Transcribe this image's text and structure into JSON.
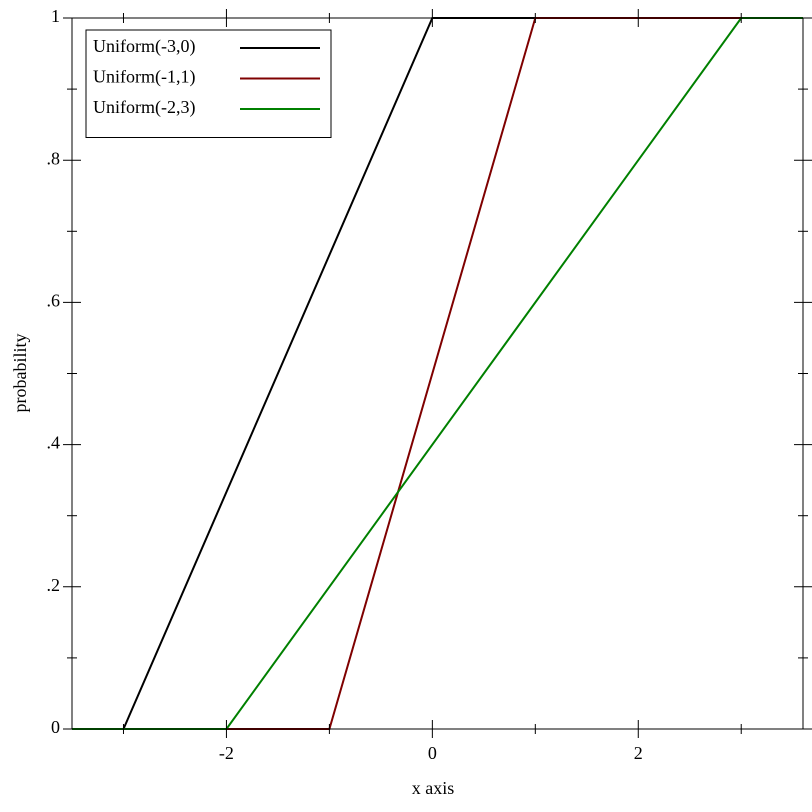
{
  "chart_data": {
    "type": "line",
    "x_label": "x axis",
    "y_label": "probability",
    "xlim": [
      -3.5,
      3.6
    ],
    "ylim": [
      0,
      1
    ],
    "xticks": [
      -2,
      0,
      2
    ],
    "xminorticks": [
      -3,
      -1,
      1,
      3
    ],
    "yticks": [
      0,
      {
        "value": 0.2,
        "label": ".2"
      },
      {
        "value": 0.4,
        "label": ".4"
      },
      {
        "value": 0.6,
        "label": ".6"
      },
      {
        "value": 0.8,
        "label": ".8"
      },
      1
    ],
    "yminorticks": [
      0.1,
      0.3,
      0.5,
      0.7,
      0.9
    ],
    "legend": "top-left",
    "series": [
      {
        "name": "Uniform(-3,0)",
        "color": "#000000",
        "x": [
          -3.5,
          -3,
          0,
          3.6
        ],
        "values": [
          0,
          0,
          1,
          1
        ]
      },
      {
        "name": "Uniform(-1,1)",
        "color": "#7f0000",
        "x": [
          -3.5,
          -1,
          1,
          3.6
        ],
        "values": [
          0,
          0,
          1,
          1
        ]
      },
      {
        "name": "Uniform(-2,3)",
        "color": "#008000",
        "x": [
          -3.5,
          -2,
          3,
          3.6
        ],
        "values": [
          0,
          0,
          1,
          1
        ]
      }
    ]
  }
}
